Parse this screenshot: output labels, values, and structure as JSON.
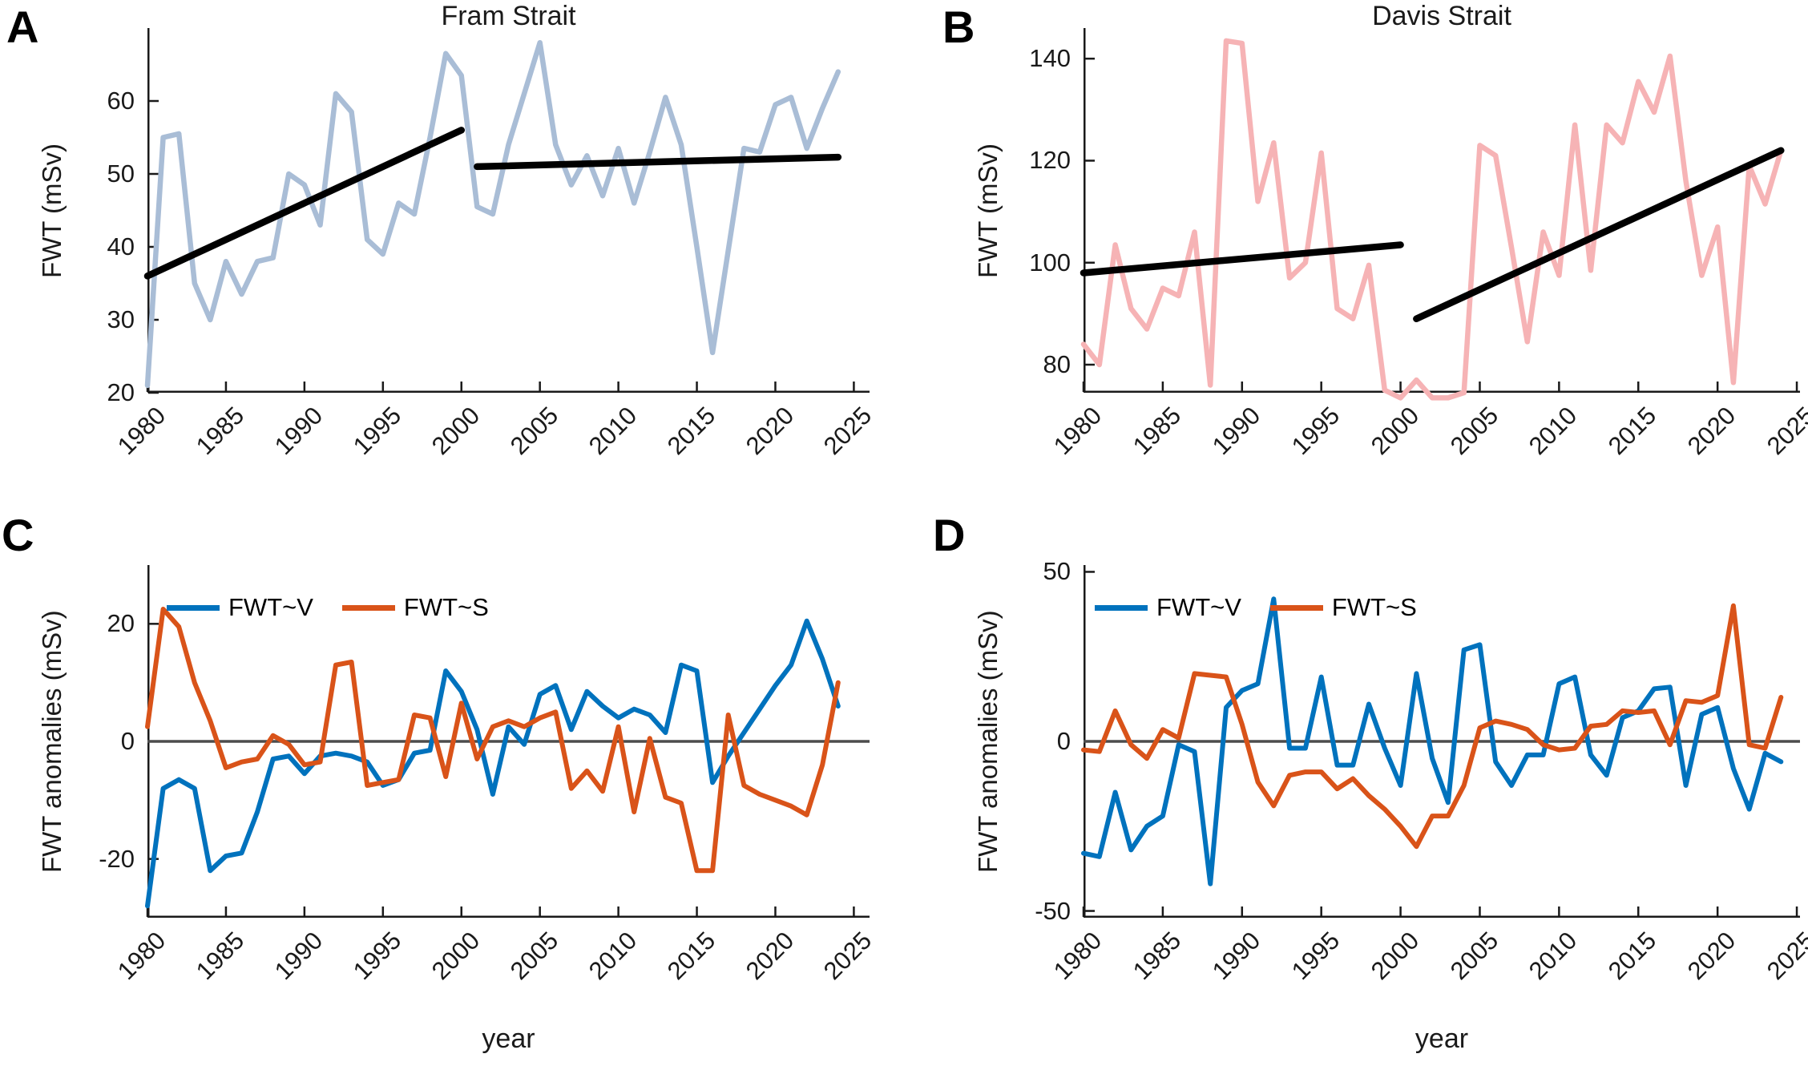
{
  "colors": {
    "fram_line": "#a9bdd6",
    "davis_line": "#f6b3b5",
    "fwt_v_blue": "#0072BD",
    "fwt_s_orange": "#D95319",
    "trend_black": "#000000",
    "zero_line_gray": "#4d4d4d",
    "axis": "#1a1a1a"
  },
  "chart_data": [
    {
      "id": "A",
      "letter": "A",
      "type": "line",
      "title": "Fram Strait",
      "xlabel": "",
      "ylabel": "FWT (mSv)",
      "x_start_year": 1980,
      "x_end_year": 2024,
      "x_ticks": [
        1980,
        1985,
        1990,
        1995,
        2000,
        2005,
        2010,
        2015,
        2020,
        2025
      ],
      "y_ticks": [
        20,
        30,
        40,
        50,
        60
      ],
      "ylim": [
        20,
        70
      ],
      "zero_line": false,
      "series": [
        {
          "name": "FWT",
          "color": "#a9bdd6",
          "values": [
            21,
            55,
            55.5,
            35,
            30,
            38,
            33.5,
            38,
            38.5,
            50,
            48.5,
            43,
            61,
            58.5,
            41,
            39,
            46,
            44.5,
            55,
            66.5,
            63.5,
            45.5,
            44.5,
            54,
            61,
            68,
            54,
            48.5,
            52.5,
            47,
            53.5,
            46,
            53,
            60.5,
            54,
            40,
            25.5,
            39.5,
            53.5,
            53,
            59.5,
            60.5,
            53.5,
            59,
            64
          ]
        }
      ],
      "trend_lines": [
        {
          "x": [
            1980,
            2000
          ],
          "y": [
            36,
            56
          ]
        },
        {
          "x": [
            2001,
            2024
          ],
          "y": [
            51,
            52.3
          ]
        }
      ]
    },
    {
      "id": "B",
      "letter": "B",
      "type": "line",
      "title": "Davis Strait",
      "xlabel": "",
      "ylabel": "FWT (mSv)",
      "x_start_year": 1980,
      "x_end_year": 2024,
      "x_ticks": [
        1980,
        1985,
        1990,
        1995,
        2000,
        2005,
        2010,
        2015,
        2020,
        2025
      ],
      "y_ticks": [
        80,
        100,
        120,
        140
      ],
      "ylim": [
        74.5,
        146
      ],
      "zero_line": false,
      "series": [
        {
          "name": "FWT",
          "color": "#f6b3b5",
          "values": [
            84,
            80,
            103.5,
            91,
            87,
            95,
            93.5,
            106,
            76,
            143.5,
            143,
            112,
            123.5,
            97,
            100,
            121.5,
            91,
            89,
            99.5,
            75,
            73.5,
            77,
            73.5,
            73.5,
            74.5,
            123,
            121,
            103,
            84.5,
            106,
            97.5,
            127,
            98.5,
            127,
            123.5,
            135.5,
            129.5,
            140.5,
            116,
            97.5,
            107,
            76.5,
            119,
            111.5,
            122
          ]
        }
      ],
      "trend_lines": [
        {
          "x": [
            1980,
            2000
          ],
          "y": [
            98,
            103.5
          ]
        },
        {
          "x": [
            2001,
            2024
          ],
          "y": [
            89,
            122
          ]
        }
      ]
    },
    {
      "id": "C",
      "letter": "C",
      "type": "line",
      "title": "",
      "xlabel": "year",
      "ylabel": "FWT anomalies (mSv)",
      "x_start_year": 1980,
      "x_end_year": 2024,
      "x_ticks": [
        1980,
        1985,
        1990,
        1995,
        2000,
        2005,
        2010,
        2015,
        2020,
        2025
      ],
      "y_ticks": [
        -20,
        0,
        20
      ],
      "ylim": [
        -30,
        30
      ],
      "zero_line": true,
      "series": [
        {
          "name": "FWT~V",
          "color": "#0072BD",
          "values": [
            -28,
            -8,
            -6.5,
            -8,
            -22,
            -19.5,
            -19,
            -12,
            -3,
            -2.5,
            -5.5,
            -2.5,
            -2,
            -2.5,
            -3.5,
            -7.5,
            -6.5,
            -2,
            -1.5,
            12,
            8.5,
            2,
            -9,
            2.5,
            -0.5,
            8,
            9.5,
            2,
            8.5,
            6,
            4,
            5.5,
            4.5,
            1.5,
            13,
            12,
            -7,
            -2.5,
            1.5,
            5.5,
            9.5,
            13,
            20.5,
            14,
            6
          ]
        },
        {
          "name": "FWT~S",
          "color": "#D95319",
          "values": [
            2.5,
            22.5,
            19.5,
            10,
            3.5,
            -4.5,
            -3.5,
            -3,
            1,
            -0.5,
            -4,
            -3.5,
            13,
            13.5,
            -7.5,
            -7,
            -6.5,
            4.5,
            4,
            -6,
            6.5,
            -3,
            2.5,
            3.5,
            2.5,
            4,
            5,
            -8,
            -5,
            -8.5,
            2.5,
            -12,
            0.5,
            -9.5,
            -10.5,
            -22,
            -22,
            4.5,
            -7.5,
            -9,
            -10,
            -11,
            -12.5,
            -4,
            10
          ]
        }
      ],
      "trend_lines": []
    },
    {
      "id": "D",
      "letter": "D",
      "type": "line",
      "title": "",
      "xlabel": "year",
      "ylabel": "FWT anomalies (mSv)",
      "x_start_year": 1980,
      "x_end_year": 2024,
      "x_ticks": [
        1980,
        1985,
        1990,
        1995,
        2000,
        2005,
        2010,
        2015,
        2020,
        2025
      ],
      "y_ticks": [
        -50,
        0,
        50
      ],
      "ylim": [
        -52,
        52
      ],
      "zero_line": true,
      "series": [
        {
          "name": "FWT~V",
          "color": "#0072BD",
          "values": [
            -33,
            -34,
            -15,
            -32,
            -25,
            -22,
            -1,
            -3,
            -42,
            10,
            15,
            17,
            42,
            -2,
            -2,
            19,
            -7,
            -7,
            11,
            -2,
            -13,
            20,
            -5,
            -18,
            27,
            28.5,
            -6,
            -13,
            -4,
            -4,
            17,
            19,
            -4,
            -10,
            7,
            9,
            15.5,
            16,
            -13,
            8,
            10,
            -8,
            -20,
            -3.5,
            -6
          ]
        },
        {
          "name": "FWT~S",
          "color": "#D95319",
          "values": [
            -2.5,
            -3,
            9,
            -1,
            -5,
            3.5,
            1,
            20,
            19.5,
            19,
            5,
            -12,
            -19,
            -10,
            -9,
            -9,
            -14,
            -11,
            -16,
            -20,
            -25,
            -31,
            -22,
            -22,
            -13,
            4,
            6,
            5,
            3.5,
            -1,
            -2.5,
            -2,
            4.5,
            5,
            9,
            8.5,
            9,
            -1,
            12,
            11.5,
            13.5,
            40,
            -1,
            -2,
            13
          ]
        }
      ],
      "trend_lines": []
    }
  ]
}
